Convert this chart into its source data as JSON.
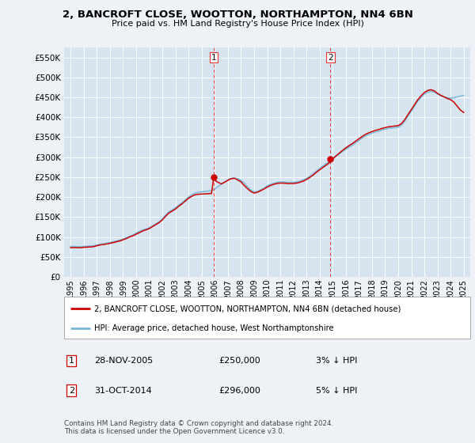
{
  "title": "2, BANCROFT CLOSE, WOOTTON, NORTHAMPTON, NN4 6BN",
  "subtitle": "Price paid vs. HM Land Registry's House Price Index (HPI)",
  "background_color": "#eef2f7",
  "plot_background": "#d6e4f0",
  "legend_line1": "2, BANCROFT CLOSE, WOOTTON, NORTHAMPTON, NN4 6BN (detached house)",
  "legend_line2": "HPI: Average price, detached house, West Northamptonshire",
  "sale1_date": "28-NOV-2005",
  "sale1_price": "£250,000",
  "sale1_hpi": "3% ↓ HPI",
  "sale2_date": "31-OCT-2014",
  "sale2_price": "£296,000",
  "sale2_hpi": "5% ↓ HPI",
  "footnote": "Contains HM Land Registry data © Crown copyright and database right 2024.\nThis data is licensed under the Open Government Licence v3.0.",
  "hpi_color": "#7ab8d9",
  "price_color": "#cc0000",
  "marker_color": "#cc0000",
  "vline_color": "#ee3333",
  "sale1_year": 2005.92,
  "sale2_year": 2014.83,
  "sale1_price_val": 250000,
  "sale2_price_val": 296000,
  "ylim_min": 0,
  "ylim_max": 575000,
  "xlim_min": 1994.5,
  "xlim_max": 2025.5,
  "yticks": [
    0,
    50000,
    100000,
    150000,
    200000,
    250000,
    300000,
    350000,
    400000,
    450000,
    500000,
    550000
  ],
  "xticks": [
    1995,
    1996,
    1997,
    1998,
    1999,
    2000,
    2001,
    2002,
    2003,
    2004,
    2005,
    2006,
    2007,
    2008,
    2009,
    2010,
    2011,
    2012,
    2013,
    2014,
    2015,
    2016,
    2017,
    2018,
    2019,
    2020,
    2021,
    2022,
    2023,
    2024,
    2025
  ],
  "hpi_data": [
    [
      1995.0,
      76000
    ],
    [
      1995.25,
      76500
    ],
    [
      1995.5,
      75800
    ],
    [
      1995.75,
      75500
    ],
    [
      1996.0,
      76500
    ],
    [
      1996.25,
      77000
    ],
    [
      1996.5,
      77500
    ],
    [
      1996.75,
      78000
    ],
    [
      1997.0,
      80000
    ],
    [
      1997.25,
      82000
    ],
    [
      1997.5,
      83000
    ],
    [
      1997.75,
      84500
    ],
    [
      1998.0,
      86000
    ],
    [
      1998.25,
      88000
    ],
    [
      1998.5,
      90000
    ],
    [
      1998.75,
      92000
    ],
    [
      1999.0,
      95000
    ],
    [
      1999.25,
      98000
    ],
    [
      1999.5,
      102000
    ],
    [
      1999.75,
      105000
    ],
    [
      2000.0,
      110000
    ],
    [
      2000.25,
      114000
    ],
    [
      2000.5,
      118000
    ],
    [
      2000.75,
      120000
    ],
    [
      2001.0,
      123000
    ],
    [
      2001.25,
      128000
    ],
    [
      2001.5,
      133000
    ],
    [
      2001.75,
      138000
    ],
    [
      2002.0,
      145000
    ],
    [
      2002.25,
      155000
    ],
    [
      2002.5,
      163000
    ],
    [
      2002.75,
      168000
    ],
    [
      2003.0,
      173000
    ],
    [
      2003.25,
      180000
    ],
    [
      2003.5,
      186000
    ],
    [
      2003.75,
      193000
    ],
    [
      2004.0,
      200000
    ],
    [
      2004.25,
      206000
    ],
    [
      2004.5,
      210000
    ],
    [
      2004.75,
      212000
    ],
    [
      2005.0,
      213000
    ],
    [
      2005.25,
      214000
    ],
    [
      2005.5,
      215000
    ],
    [
      2005.75,
      216000
    ],
    [
      2006.0,
      220000
    ],
    [
      2006.25,
      226000
    ],
    [
      2006.5,
      232000
    ],
    [
      2006.75,
      238000
    ],
    [
      2007.0,
      243000
    ],
    [
      2007.25,
      247000
    ],
    [
      2007.5,
      248000
    ],
    [
      2007.75,
      246000
    ],
    [
      2008.0,
      242000
    ],
    [
      2008.25,
      235000
    ],
    [
      2008.5,
      226000
    ],
    [
      2008.75,
      218000
    ],
    [
      2009.0,
      213000
    ],
    [
      2009.25,
      214000
    ],
    [
      2009.5,
      218000
    ],
    [
      2009.75,
      222000
    ],
    [
      2010.0,
      228000
    ],
    [
      2010.25,
      232000
    ],
    [
      2010.5,
      235000
    ],
    [
      2010.75,
      237000
    ],
    [
      2011.0,
      238000
    ],
    [
      2011.25,
      238000
    ],
    [
      2011.5,
      237000
    ],
    [
      2011.75,
      237000
    ],
    [
      2012.0,
      237000
    ],
    [
      2012.25,
      238000
    ],
    [
      2012.5,
      240000
    ],
    [
      2012.75,
      243000
    ],
    [
      2013.0,
      247000
    ],
    [
      2013.25,
      252000
    ],
    [
      2013.5,
      258000
    ],
    [
      2013.75,
      265000
    ],
    [
      2014.0,
      272000
    ],
    [
      2014.25,
      278000
    ],
    [
      2014.5,
      284000
    ],
    [
      2014.75,
      289000
    ],
    [
      2015.0,
      295000
    ],
    [
      2015.25,
      302000
    ],
    [
      2015.5,
      308000
    ],
    [
      2015.75,
      314000
    ],
    [
      2016.0,
      320000
    ],
    [
      2016.25,
      325000
    ],
    [
      2016.5,
      330000
    ],
    [
      2016.75,
      336000
    ],
    [
      2017.0,
      342000
    ],
    [
      2017.25,
      348000
    ],
    [
      2017.5,
      353000
    ],
    [
      2017.75,
      357000
    ],
    [
      2018.0,
      360000
    ],
    [
      2018.25,
      363000
    ],
    [
      2018.5,
      365000
    ],
    [
      2018.75,
      368000
    ],
    [
      2019.0,
      370000
    ],
    [
      2019.25,
      372000
    ],
    [
      2019.5,
      373000
    ],
    [
      2019.75,
      374000
    ],
    [
      2020.0,
      375000
    ],
    [
      2020.25,
      380000
    ],
    [
      2020.5,
      390000
    ],
    [
      2020.75,
      403000
    ],
    [
      2021.0,
      415000
    ],
    [
      2021.25,
      428000
    ],
    [
      2021.5,
      440000
    ],
    [
      2021.75,
      450000
    ],
    [
      2022.0,
      458000
    ],
    [
      2022.25,
      463000
    ],
    [
      2022.5,
      465000
    ],
    [
      2022.75,
      463000
    ],
    [
      2023.0,
      458000
    ],
    [
      2023.25,
      454000
    ],
    [
      2023.5,
      451000
    ],
    [
      2023.75,
      449000
    ],
    [
      2024.0,
      448000
    ],
    [
      2024.25,
      449000
    ],
    [
      2024.5,
      451000
    ],
    [
      2024.75,
      453000
    ],
    [
      2025.0,
      455000
    ]
  ],
  "price_data": [
    [
      1995.0,
      73000
    ],
    [
      1995.25,
      73500
    ],
    [
      1995.5,
      73200
    ],
    [
      1995.75,
      73000
    ],
    [
      1996.0,
      74000
    ],
    [
      1996.25,
      74500
    ],
    [
      1996.5,
      75000
    ],
    [
      1996.75,
      75800
    ],
    [
      1997.0,
      78000
    ],
    [
      1997.25,
      80000
    ],
    [
      1997.5,
      81000
    ],
    [
      1997.75,
      82500
    ],
    [
      1998.0,
      84000
    ],
    [
      1998.25,
      86000
    ],
    [
      1998.5,
      88000
    ],
    [
      1998.75,
      90000
    ],
    [
      1999.0,
      93000
    ],
    [
      1999.25,
      96000
    ],
    [
      1999.5,
      100000
    ],
    [
      1999.75,
      103000
    ],
    [
      2000.0,
      107000
    ],
    [
      2000.25,
      111000
    ],
    [
      2000.5,
      115000
    ],
    [
      2000.75,
      118000
    ],
    [
      2001.0,
      121000
    ],
    [
      2001.25,
      126000
    ],
    [
      2001.5,
      131000
    ],
    [
      2001.75,
      136000
    ],
    [
      2002.0,
      143000
    ],
    [
      2002.25,
      152000
    ],
    [
      2002.5,
      160000
    ],
    [
      2002.75,
      165000
    ],
    [
      2003.0,
      170000
    ],
    [
      2003.25,
      177000
    ],
    [
      2003.5,
      183000
    ],
    [
      2003.75,
      190000
    ],
    [
      2004.0,
      197000
    ],
    [
      2004.25,
      202000
    ],
    [
      2004.5,
      206000
    ],
    [
      2004.75,
      207000
    ],
    [
      2005.0,
      207500
    ],
    [
      2005.25,
      208000
    ],
    [
      2005.5,
      208500
    ],
    [
      2005.75,
      209000
    ],
    [
      2005.92,
      250000
    ],
    [
      2006.0,
      242000
    ],
    [
      2006.25,
      237000
    ],
    [
      2006.5,
      233000
    ],
    [
      2006.75,
      237000
    ],
    [
      2007.0,
      242000
    ],
    [
      2007.25,
      246000
    ],
    [
      2007.5,
      247000
    ],
    [
      2007.75,
      243000
    ],
    [
      2008.0,
      238000
    ],
    [
      2008.25,
      229000
    ],
    [
      2008.5,
      221000
    ],
    [
      2008.75,
      214000
    ],
    [
      2009.0,
      210000
    ],
    [
      2009.25,
      212000
    ],
    [
      2009.5,
      216000
    ],
    [
      2009.75,
      220000
    ],
    [
      2010.0,
      225000
    ],
    [
      2010.25,
      229000
    ],
    [
      2010.5,
      232000
    ],
    [
      2010.75,
      234000
    ],
    [
      2011.0,
      235000
    ],
    [
      2011.25,
      235000
    ],
    [
      2011.5,
      234000
    ],
    [
      2011.75,
      234000
    ],
    [
      2012.0,
      234000
    ],
    [
      2012.25,
      235000
    ],
    [
      2012.5,
      237000
    ],
    [
      2012.75,
      240000
    ],
    [
      2013.0,
      244000
    ],
    [
      2013.25,
      249000
    ],
    [
      2013.5,
      255000
    ],
    [
      2013.75,
      262000
    ],
    [
      2014.0,
      268000
    ],
    [
      2014.25,
      274000
    ],
    [
      2014.5,
      280000
    ],
    [
      2014.75,
      286000
    ],
    [
      2014.83,
      296000
    ],
    [
      2015.0,
      296000
    ],
    [
      2015.25,
      303000
    ],
    [
      2015.5,
      310000
    ],
    [
      2015.75,
      317000
    ],
    [
      2016.0,
      323000
    ],
    [
      2016.25,
      329000
    ],
    [
      2016.5,
      334000
    ],
    [
      2016.75,
      340000
    ],
    [
      2017.0,
      346000
    ],
    [
      2017.25,
      352000
    ],
    [
      2017.5,
      357000
    ],
    [
      2017.75,
      361000
    ],
    [
      2018.0,
      364000
    ],
    [
      2018.25,
      367000
    ],
    [
      2018.5,
      369000
    ],
    [
      2018.75,
      372000
    ],
    [
      2019.0,
      374000
    ],
    [
      2019.25,
      376000
    ],
    [
      2019.5,
      377000
    ],
    [
      2019.75,
      378000
    ],
    [
      2020.0,
      379000
    ],
    [
      2020.25,
      384000
    ],
    [
      2020.5,
      394000
    ],
    [
      2020.75,
      407000
    ],
    [
      2021.0,
      419000
    ],
    [
      2021.25,
      432000
    ],
    [
      2021.5,
      444000
    ],
    [
      2021.75,
      454000
    ],
    [
      2022.0,
      462000
    ],
    [
      2022.25,
      467000
    ],
    [
      2022.5,
      469000
    ],
    [
      2022.75,
      466000
    ],
    [
      2023.0,
      460000
    ],
    [
      2023.25,
      455000
    ],
    [
      2023.5,
      451000
    ],
    [
      2023.75,
      447000
    ],
    [
      2024.0,
      444000
    ],
    [
      2024.25,
      438000
    ],
    [
      2024.5,
      428000
    ],
    [
      2024.75,
      418000
    ],
    [
      2025.0,
      412000
    ]
  ]
}
